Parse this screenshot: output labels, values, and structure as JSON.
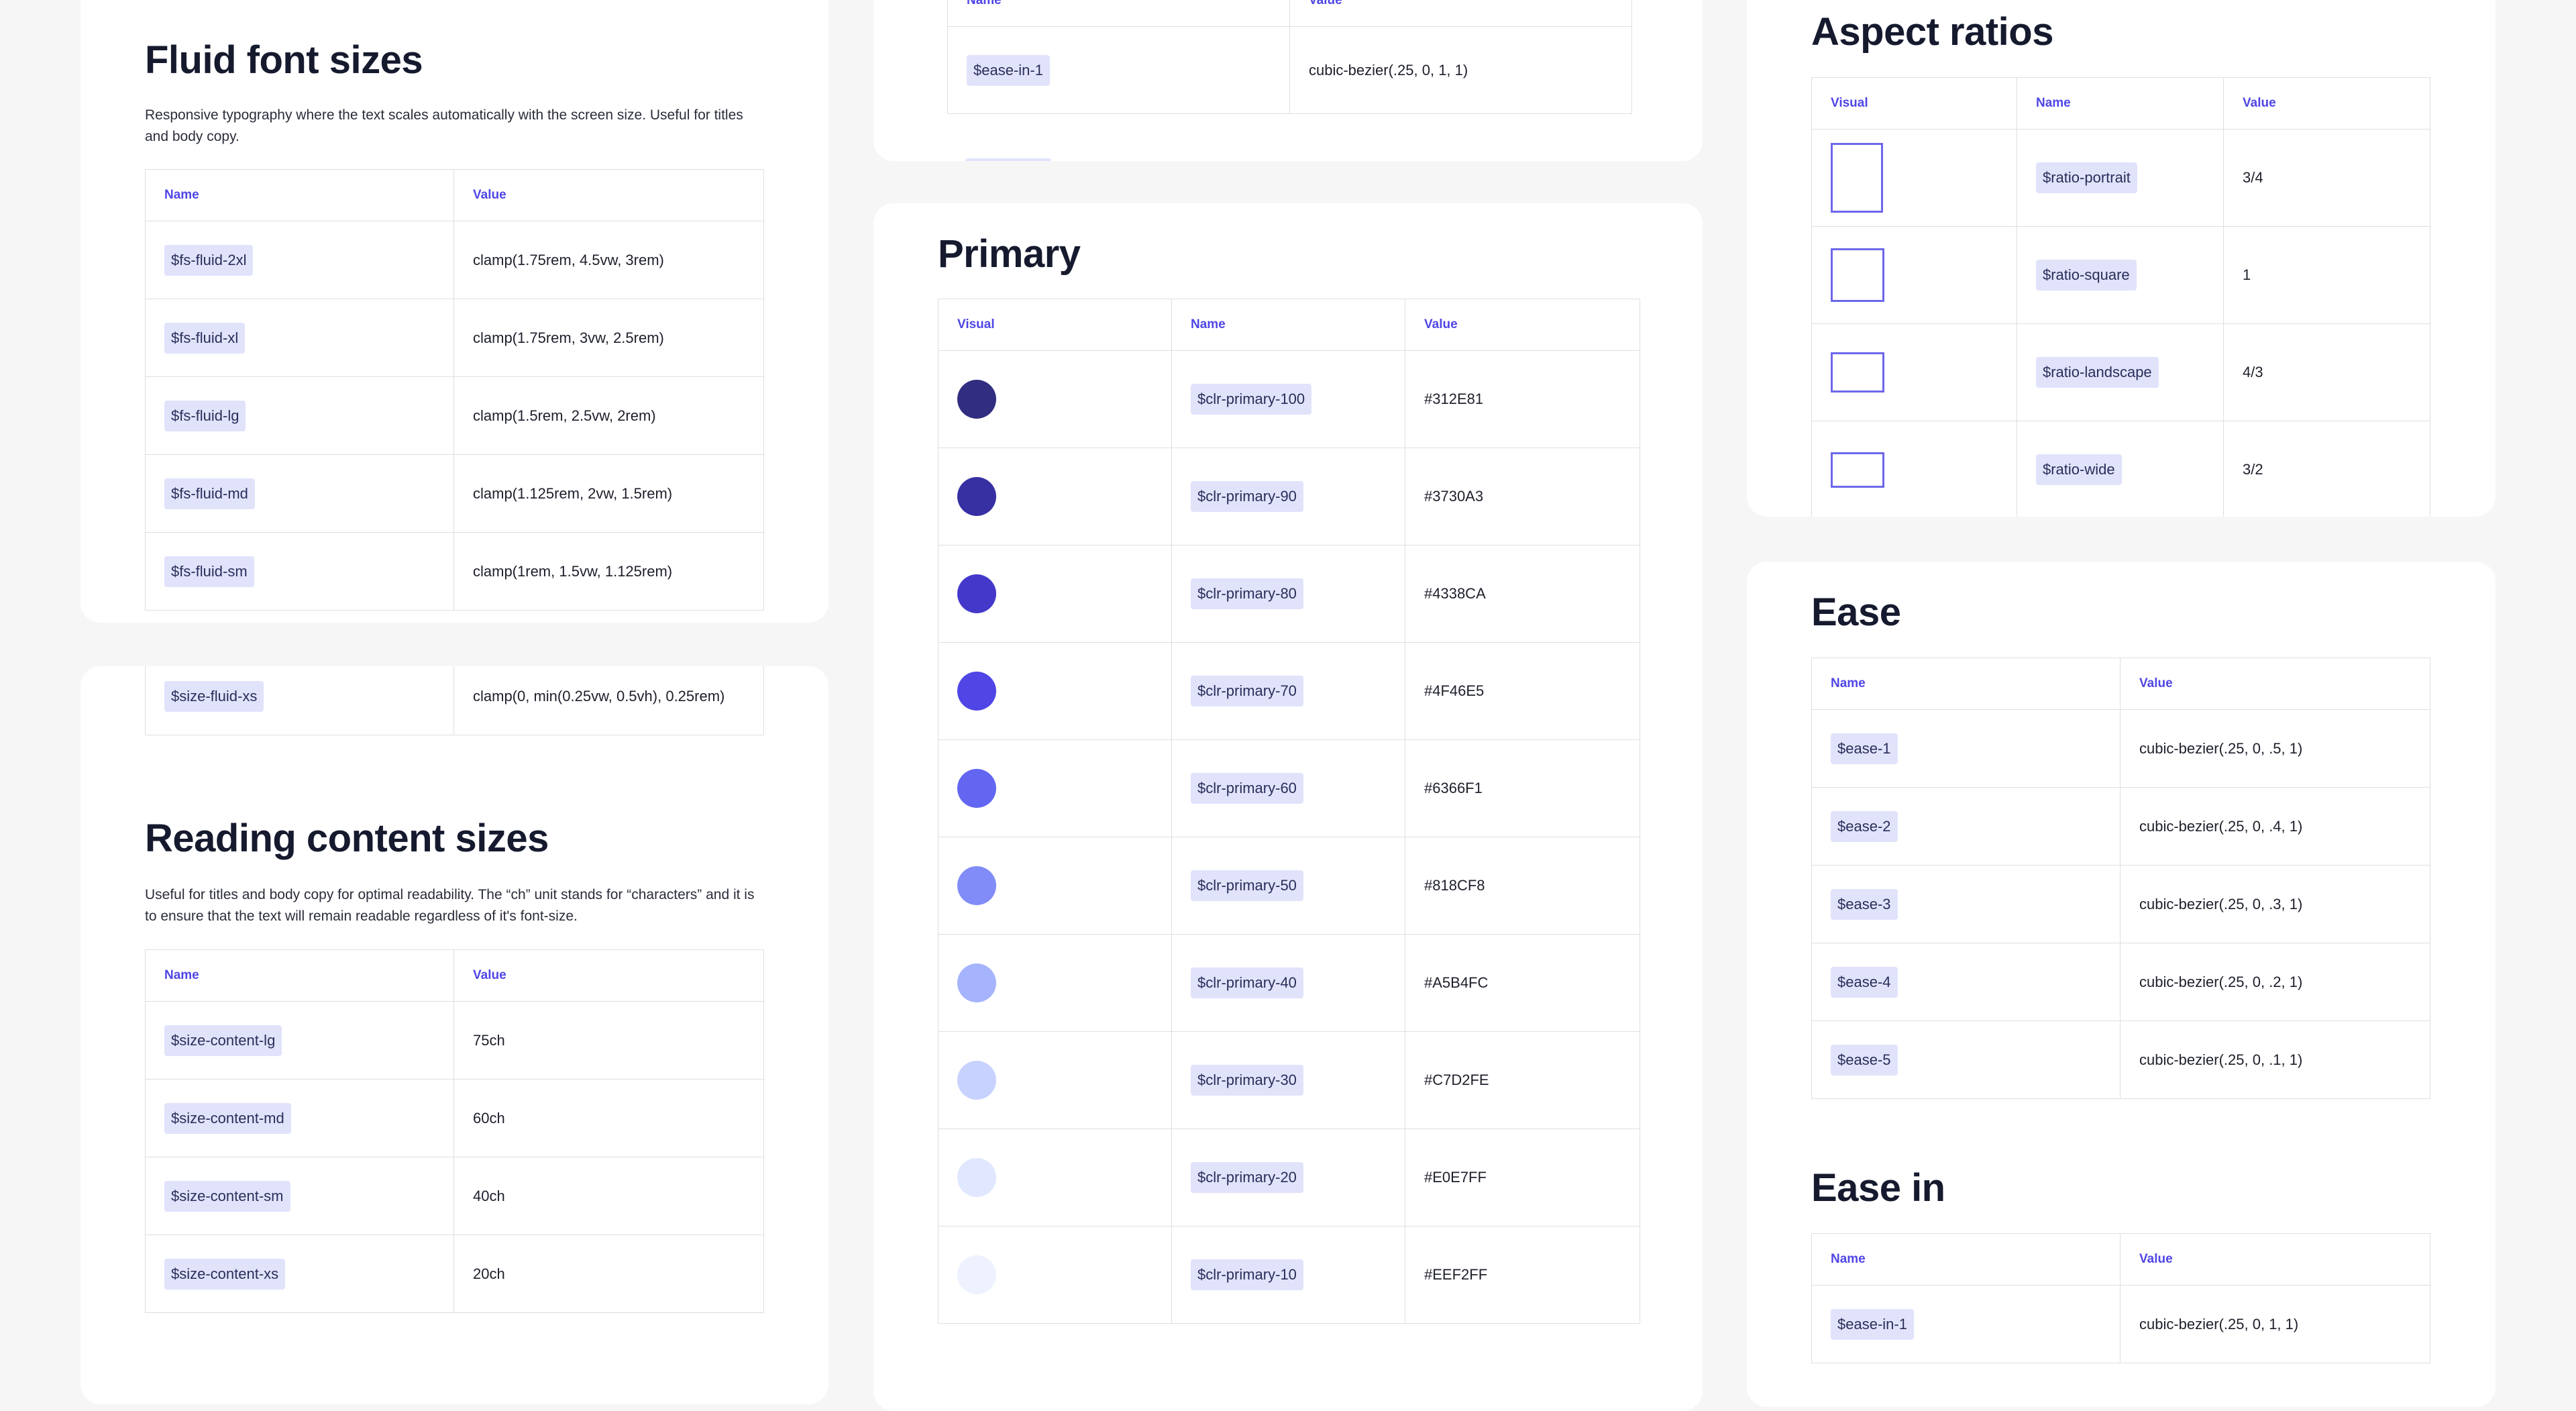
{
  "fluid_font": {
    "title": "Fluid font sizes",
    "desc": "Responsive typography where the text scales automatically with the screen size. Useful for titles and body copy.",
    "headers": {
      "name": "Name",
      "value": "Value"
    },
    "rows": [
      {
        "name": "$fs-fluid-2xl",
        "value": "clamp(1.75rem, 4.5vw, 3rem)"
      },
      {
        "name": "$fs-fluid-xl",
        "value": "clamp(1.75rem, 3vw, 2.5rem)"
      },
      {
        "name": "$fs-fluid-lg",
        "value": "clamp(1.5rem, 2.5vw, 2rem)"
      },
      {
        "name": "$fs-fluid-md",
        "value": "clamp(1.125rem, 2vw, 1.5rem)"
      },
      {
        "name": "$fs-fluid-sm",
        "value": "clamp(1rem, 1.5vw, 1.125rem)"
      }
    ]
  },
  "fluid_size_tail": {
    "rows": [
      {
        "name": "$size-fluid-xs",
        "value": "clamp(0, min(0.25vw, 0.5vh), 0.25rem)"
      }
    ]
  },
  "reading": {
    "title": "Reading content sizes",
    "desc": "Useful for titles and body copy for optimal readability. The “ch” unit stands for “characters” and it is to ensure that the text will remain readable regardless of it's font-size.",
    "headers": {
      "name": "Name",
      "value": "Value"
    },
    "rows": [
      {
        "name": "$size-content-lg",
        "value": "75ch"
      },
      {
        "name": "$size-content-md",
        "value": "60ch"
      },
      {
        "name": "$size-content-sm",
        "value": "40ch"
      },
      {
        "name": "$size-content-xs",
        "value": "20ch"
      }
    ]
  },
  "ease_in_top": {
    "headers": {
      "name": "Name",
      "value": "Value"
    },
    "rows": [
      {
        "name": "$ease-in-1",
        "value": "cubic-bezier(.25, 0, 1, 1)"
      }
    ]
  },
  "primary": {
    "title": "Primary",
    "headers": {
      "visual": "Visual",
      "name": "Name",
      "value": "Value"
    },
    "rows": [
      {
        "name": "$clr-primary-100",
        "value": "#312E81",
        "color": "#312E81"
      },
      {
        "name": "$clr-primary-90",
        "value": "#3730A3",
        "color": "#3730A3"
      },
      {
        "name": "$clr-primary-80",
        "value": "#4338CA",
        "color": "#4338CA"
      },
      {
        "name": "$clr-primary-70",
        "value": "#4F46E5",
        "color": "#4F46E5"
      },
      {
        "name": "$clr-primary-60",
        "value": "#6366F1",
        "color": "#6366F1"
      },
      {
        "name": "$clr-primary-50",
        "value": "#818CF8",
        "color": "#818CF8"
      },
      {
        "name": "$clr-primary-40",
        "value": "#A5B4FC",
        "color": "#A5B4FC"
      },
      {
        "name": "$clr-primary-30",
        "value": "#C7D2FE",
        "color": "#C7D2FE"
      },
      {
        "name": "$clr-primary-20",
        "value": "#E0E7FF",
        "color": "#E0E7FF"
      },
      {
        "name": "$clr-primary-10",
        "value": "#EEF2FF",
        "color": "#EEF2FF"
      }
    ]
  },
  "aspect": {
    "title": "Aspect ratios",
    "headers": {
      "visual": "Visual",
      "name": "Name",
      "value": "Value"
    },
    "rows": [
      {
        "name": "$ratio-portrait",
        "value": "3/4",
        "ratio": 0.75
      },
      {
        "name": "$ratio-square",
        "value": "1",
        "ratio": 1
      },
      {
        "name": "$ratio-landscape",
        "value": "4/3",
        "ratio": 1.3333
      },
      {
        "name": "$ratio-wide",
        "value": "3/2",
        "ratio": 1.5
      }
    ]
  },
  "ease": {
    "title": "Ease",
    "headers": {
      "name": "Name",
      "value": "Value"
    },
    "rows": [
      {
        "name": "$ease-1",
        "value": "cubic-bezier(.25, 0, .5, 1)"
      },
      {
        "name": "$ease-2",
        "value": "cubic-bezier(.25, 0, .4, 1)"
      },
      {
        "name": "$ease-3",
        "value": "cubic-bezier(.25, 0, .3, 1)"
      },
      {
        "name": "$ease-4",
        "value": "cubic-bezier(.25, 0, .2, 1)"
      },
      {
        "name": "$ease-5",
        "value": "cubic-bezier(.25, 0, .1, 1)"
      }
    ]
  },
  "ease_in": {
    "title": "Ease in",
    "headers": {
      "name": "Name",
      "value": "Value"
    },
    "rows": [
      {
        "name": "$ease-in-1",
        "value": "cubic-bezier(.25, 0, 1, 1)"
      }
    ]
  }
}
